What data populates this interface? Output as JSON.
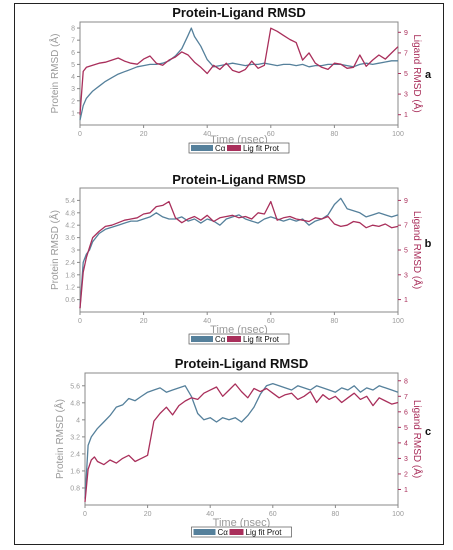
{
  "panels": [
    {
      "label": "a",
      "title": "Protein-Ligand RMSD",
      "xlabel": "Time (nsec)",
      "ylabel_left": "Protein RMSD (Å)",
      "ylabel_right": "Ligand RMSD (Å)",
      "legend": [
        "Cα",
        "Lig fit Prot"
      ]
    },
    {
      "label": "b",
      "title": "Protein-Ligand RMSD",
      "xlabel": "Time (nsec)",
      "ylabel_left": "Protein RMSD (Å)",
      "ylabel_right": "Ligand RMSD (Å)",
      "legend": [
        "Cα",
        "Lig fit Prot"
      ]
    },
    {
      "label": "c",
      "title": "Protein-Ligand RMSD",
      "xlabel": "Time (nsec)",
      "ylabel_left": "Protein RMSD (Å)",
      "ylabel_right": "Ligand RMSD (Å)",
      "legend": [
        "Cα",
        "Lig fit Prot"
      ]
    }
  ],
  "colors": {
    "ca": "#55809b",
    "lig": "#a92f5b",
    "axis": "#888888",
    "text": "#999999"
  },
  "chart_data": [
    {
      "type": "line",
      "title": "Protein-Ligand RMSD",
      "xlabel": "Time (nsec)",
      "ylabel": "Protein RMSD (Å)",
      "y2label": "Ligand RMSD (Å)",
      "xlim": [
        0,
        100
      ],
      "ylim": [
        0,
        8.5
      ],
      "y2lim": [
        0,
        10
      ],
      "xticks": [
        0,
        20,
        40,
        60,
        80,
        100
      ],
      "yticks": [
        1,
        2,
        3,
        4,
        5,
        6,
        7,
        8
      ],
      "y2ticks": [
        1,
        3,
        5,
        7,
        9
      ],
      "legend": "bottom-center",
      "series": [
        {
          "name": "Cα",
          "axis": "left",
          "color": "#55809b",
          "x": [
            0,
            1,
            2,
            3,
            4,
            5,
            6,
            8,
            10,
            12,
            14,
            16,
            18,
            20,
            22,
            24,
            26,
            28,
            30,
            32,
            34,
            35,
            36,
            38,
            40,
            42,
            44,
            46,
            48,
            50,
            52,
            54,
            56,
            58,
            60,
            62,
            64,
            66,
            68,
            70,
            72,
            74,
            76,
            78,
            80,
            82,
            84,
            86,
            88,
            90,
            92,
            94,
            96,
            98,
            100
          ],
          "y": [
            0.4,
            1.6,
            2.2,
            2.5,
            2.8,
            3.0,
            3.2,
            3.6,
            3.9,
            4.2,
            4.4,
            4.6,
            4.8,
            4.9,
            5.0,
            5.0,
            5.1,
            5.3,
            5.7,
            6.3,
            7.4,
            8.0,
            7.3,
            6.5,
            5.4,
            4.8,
            4.9,
            5.0,
            5.1,
            5.0,
            4.9,
            5.0,
            5.0,
            5.1,
            5.0,
            4.9,
            5.0,
            5.0,
            4.9,
            5.0,
            4.8,
            4.9,
            4.9,
            5.0,
            5.0,
            5.0,
            4.9,
            4.8,
            5.0,
            5.1,
            5.0,
            5.1,
            5.2,
            5.3,
            5.3
          ]
        },
        {
          "name": "Lig fit Prot",
          "axis": "right",
          "color": "#a92f5b",
          "x": [
            0,
            1,
            2,
            4,
            6,
            8,
            10,
            12,
            14,
            16,
            18,
            20,
            22,
            24,
            26,
            28,
            30,
            32,
            34,
            36,
            38,
            40,
            42,
            44,
            46,
            48,
            50,
            52,
            54,
            56,
            58,
            60,
            62,
            64,
            66,
            68,
            70,
            72,
            74,
            76,
            78,
            80,
            82,
            84,
            86,
            88,
            90,
            92,
            94,
            96,
            98,
            100
          ],
          "y": [
            1.0,
            5.2,
            5.6,
            5.8,
            6.0,
            6.1,
            6.3,
            6.5,
            6.2,
            6.0,
            5.9,
            6.4,
            6.7,
            6.0,
            5.8,
            6.3,
            6.6,
            7.1,
            6.8,
            6.1,
            5.6,
            5.0,
            5.8,
            5.4,
            6.0,
            5.3,
            5.1,
            5.4,
            6.2,
            5.5,
            5.8,
            9.4,
            9.1,
            8.7,
            8.3,
            8.0,
            6.3,
            7.0,
            6.0,
            5.6,
            5.4,
            6.0,
            5.9,
            5.5,
            5.6,
            6.8,
            5.7,
            6.3,
            6.8,
            6.4,
            7.0,
            7.6
          ]
        }
      ]
    },
    {
      "type": "line",
      "title": "Protein-Ligand RMSD",
      "xlabel": "Time (nsec)",
      "ylabel": "Protein RMSD (Å)",
      "y2label": "Ligand RMSD (Å)",
      "xlim": [
        0,
        100
      ],
      "ylim": [
        0,
        6.0
      ],
      "y2lim": [
        0,
        10
      ],
      "xticks": [
        0,
        20,
        40,
        60,
        80,
        100
      ],
      "yticks": [
        0.6,
        1.2,
        1.8,
        2.4,
        3.0,
        3.6,
        4.2,
        4.8,
        5.4
      ],
      "y2ticks": [
        1,
        3,
        5,
        7,
        9
      ],
      "legend": "bottom-center",
      "series": [
        {
          "name": "Cα",
          "axis": "left",
          "color": "#55809b",
          "x": [
            0,
            1,
            2,
            3,
            4,
            6,
            8,
            10,
            12,
            14,
            16,
            18,
            20,
            22,
            24,
            26,
            28,
            30,
            32,
            34,
            36,
            38,
            40,
            42,
            44,
            46,
            48,
            50,
            52,
            54,
            56,
            58,
            60,
            62,
            64,
            66,
            68,
            70,
            72,
            74,
            76,
            78,
            80,
            82,
            84,
            86,
            88,
            90,
            92,
            94,
            96,
            98,
            100
          ],
          "y": [
            0.2,
            2.4,
            2.8,
            3.0,
            3.4,
            3.8,
            4.0,
            4.1,
            4.2,
            4.3,
            4.4,
            4.4,
            4.5,
            4.6,
            4.8,
            4.6,
            4.5,
            4.5,
            4.6,
            4.4,
            4.5,
            4.3,
            4.5,
            4.4,
            4.2,
            4.5,
            4.6,
            4.7,
            4.5,
            4.4,
            4.3,
            4.5,
            4.6,
            4.5,
            4.4,
            4.5,
            4.4,
            4.5,
            4.2,
            4.4,
            4.5,
            4.7,
            5.2,
            5.5,
            5.0,
            4.9,
            4.8,
            4.6,
            4.7,
            4.8,
            4.7,
            4.6,
            4.7
          ]
        },
        {
          "name": "Lig fit Prot",
          "axis": "right",
          "color": "#a92f5b",
          "x": [
            0,
            1,
            2,
            3,
            4,
            6,
            8,
            10,
            12,
            14,
            16,
            18,
            20,
            22,
            24,
            26,
            28,
            30,
            32,
            34,
            36,
            38,
            40,
            42,
            44,
            46,
            48,
            50,
            52,
            54,
            56,
            58,
            60,
            62,
            64,
            66,
            68,
            70,
            72,
            74,
            76,
            78,
            80,
            82,
            84,
            86,
            88,
            90,
            92,
            94,
            96,
            98,
            100
          ],
          "y": [
            0.3,
            3.2,
            4.4,
            5.2,
            6.0,
            6.5,
            6.9,
            7.0,
            7.2,
            7.4,
            7.5,
            7.6,
            7.9,
            8.0,
            8.5,
            8.6,
            8.9,
            7.6,
            7.2,
            7.5,
            7.7,
            7.4,
            7.8,
            7.3,
            7.6,
            7.7,
            7.8,
            7.6,
            7.7,
            7.5,
            8.0,
            7.9,
            8.9,
            7.4,
            7.6,
            7.7,
            7.5,
            7.4,
            7.3,
            7.6,
            7.5,
            7.7,
            7.1,
            6.9,
            7.0,
            7.3,
            7.2,
            6.8,
            7.0,
            6.9,
            7.1,
            6.8,
            6.9
          ]
        }
      ]
    },
    {
      "type": "line",
      "title": "Protein-Ligand RMSD",
      "xlabel": "Time (nsec)",
      "ylabel": "Protein RMSD (Å)",
      "y2label": "Ligand RMSD (Å)",
      "xlim": [
        0,
        100
      ],
      "ylim": [
        0,
        6.2
      ],
      "y2lim": [
        0,
        8.5
      ],
      "xticks": [
        0,
        20,
        40,
        60,
        80,
        100
      ],
      "yticks": [
        0.8,
        1.6,
        2.4,
        3.2,
        4.0,
        4.8,
        5.6
      ],
      "y2ticks": [
        1,
        2,
        3,
        4,
        5,
        6,
        7,
        8
      ],
      "legend": "bottom-center",
      "series": [
        {
          "name": "Cα",
          "axis": "left",
          "color": "#55809b",
          "x": [
            0,
            1,
            2,
            3,
            4,
            6,
            8,
            10,
            12,
            14,
            16,
            18,
            20,
            22,
            24,
            26,
            28,
            30,
            32,
            34,
            36,
            38,
            40,
            42,
            44,
            46,
            48,
            50,
            52,
            54,
            56,
            58,
            60,
            62,
            64,
            66,
            68,
            70,
            72,
            74,
            76,
            78,
            80,
            82,
            84,
            86,
            88,
            90,
            92,
            94,
            96,
            98,
            100
          ],
          "y": [
            0.3,
            2.8,
            3.2,
            3.4,
            3.6,
            3.9,
            4.2,
            4.6,
            4.7,
            5.0,
            4.9,
            5.1,
            5.3,
            5.4,
            5.5,
            5.3,
            5.4,
            5.5,
            5.6,
            5.1,
            4.3,
            4.0,
            4.1,
            3.9,
            4.1,
            4.0,
            4.1,
            3.9,
            4.2,
            4.6,
            5.2,
            5.6,
            5.7,
            5.6,
            5.5,
            5.4,
            5.6,
            5.5,
            5.4,
            5.6,
            5.5,
            5.4,
            5.3,
            5.5,
            5.4,
            5.6,
            5.3,
            5.5,
            5.4,
            5.6,
            5.5,
            5.4,
            5.3
          ]
        },
        {
          "name": "Lig fit Prot",
          "axis": "right",
          "color": "#a92f5b",
          "x": [
            0,
            1,
            2,
            3,
            4,
            6,
            8,
            10,
            12,
            14,
            16,
            18,
            20,
            22,
            24,
            26,
            28,
            30,
            32,
            34,
            36,
            38,
            40,
            42,
            44,
            46,
            48,
            50,
            52,
            54,
            56,
            58,
            60,
            62,
            64,
            66,
            68,
            70,
            72,
            74,
            76,
            78,
            80,
            82,
            84,
            86,
            88,
            90,
            92,
            94,
            96,
            98,
            100
          ],
          "y": [
            0.2,
            2.3,
            2.9,
            3.1,
            2.8,
            2.6,
            2.9,
            2.7,
            3.0,
            3.2,
            2.8,
            3.0,
            3.2,
            5.4,
            5.9,
            6.3,
            5.8,
            6.4,
            6.7,
            6.9,
            6.8,
            7.2,
            7.4,
            7.6,
            7.0,
            7.4,
            7.8,
            7.3,
            6.9,
            7.5,
            7.3,
            7.5,
            7.2,
            6.9,
            7.1,
            7.2,
            6.8,
            7.0,
            7.3,
            6.6,
            7.1,
            6.8,
            7.0,
            6.6,
            6.9,
            7.2,
            6.8,
            7.0,
            6.4,
            6.9,
            6.7,
            6.5,
            6.6
          ]
        }
      ]
    }
  ]
}
